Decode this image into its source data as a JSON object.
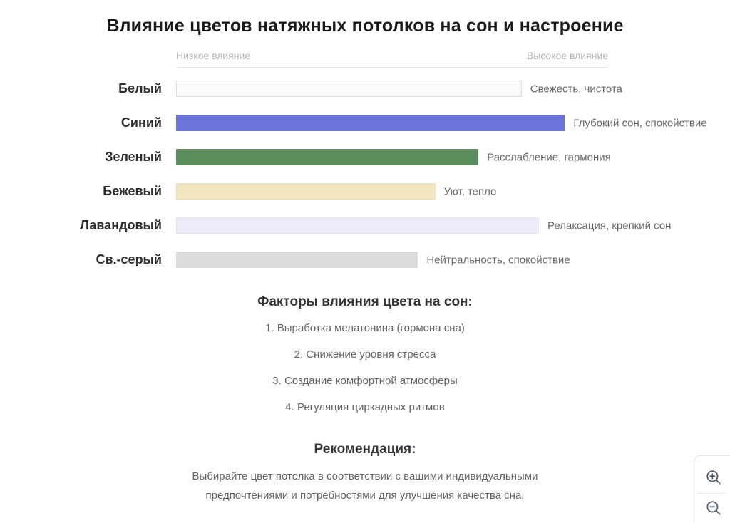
{
  "title": "Влияние цветов натяжных потолков на сон и настроение",
  "chart_data": {
    "type": "bar",
    "orientation": "horizontal",
    "axis_low_label": "Низкое влияние",
    "axis_high_label": "Высокое влияние",
    "value_range": [
      0,
      100
    ],
    "grid": false,
    "categories": [
      "Белый",
      "Синий",
      "Зеленый",
      "Бежевый",
      "Лавандовый",
      "Св.-серый"
    ],
    "values": [
      80,
      90,
      70,
      60,
      84,
      56
    ],
    "annotations": [
      "Свежесть, чистота",
      "Глубокий сон, спокойствие",
      "Расслабление, гармония",
      "Уют, тепло",
      "Релаксация, крепкий сон",
      "Нейтральность, спокойствие"
    ],
    "colors": [
      "#fbfbfb",
      "#6b74da",
      "#5b8e5c",
      "#f3e7c0",
      "#eeecfa",
      "#dcdcdc"
    ],
    "border_colors": [
      "#dedede",
      "#6b74da",
      "#5b8e5c",
      "#eadfb9",
      "#e2e0f2",
      "#dcdcdc"
    ]
  },
  "factors": {
    "heading": "Факторы влияния цвета на сон:",
    "items": [
      "1. Выработка мелатонина (гормона сна)",
      "2. Снижение уровня стресса",
      "3. Создание комфортной атмосферы",
      "4. Регуляция циркадных ритмов"
    ]
  },
  "recommendation": {
    "heading": "Рекомендация:",
    "text": "Выбирайте цвет потолка в соответствии с вашими индивидуальными предпочтениями и потребностями для улучшения качества сна."
  },
  "zoom_controls": {
    "icons": [
      "magnifier-plus-icon",
      "magnifier-minus-icon"
    ],
    "icon_color": "#4a5566"
  }
}
